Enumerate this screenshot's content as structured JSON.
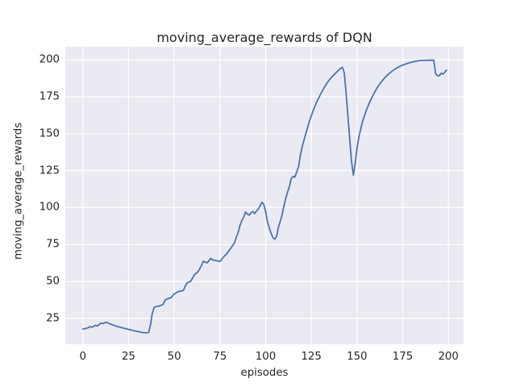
{
  "chart_data": {
    "type": "line",
    "title": "moving_average_rewards of DQN",
    "xlabel": "episodes",
    "ylabel": "moving_average_rewards",
    "x_ticks": [
      0,
      25,
      50,
      75,
      100,
      125,
      150,
      175,
      200
    ],
    "y_ticks": [
      25,
      50,
      75,
      100,
      125,
      150,
      175,
      200
    ],
    "xlim": [
      -9.6,
      208.3
    ],
    "ylim": [
      7.5,
      208.8
    ],
    "grid": true,
    "legend": false,
    "colors": {
      "figure_bg": "#ffffff",
      "axes_bg": "#eaeaf2",
      "grid": "#ffffff",
      "line": "#4c72b0",
      "text": "#262626"
    },
    "series": [
      {
        "name": "moving_average_rewards",
        "points": [
          [
            0,
            17.8
          ],
          [
            1,
            18.1
          ],
          [
            2,
            18.3
          ],
          [
            3,
            18.8
          ],
          [
            4,
            19.4
          ],
          [
            5,
            19.0
          ],
          [
            6,
            19.7
          ],
          [
            7,
            20.3
          ],
          [
            8,
            19.9
          ],
          [
            9,
            21.0
          ],
          [
            10,
            21.9
          ],
          [
            11,
            21.5
          ],
          [
            12,
            22.1
          ],
          [
            13,
            22.3
          ],
          [
            14,
            21.8
          ],
          [
            15,
            21.2
          ],
          [
            17,
            20.3
          ],
          [
            19,
            19.5
          ],
          [
            21,
            18.8
          ],
          [
            23,
            18.2
          ],
          [
            25,
            17.6
          ],
          [
            27,
            17.0
          ],
          [
            29,
            16.4
          ],
          [
            31,
            15.9
          ],
          [
            33,
            15.4
          ],
          [
            35,
            15.2
          ],
          [
            36,
            15.6
          ],
          [
            37,
            20.5
          ],
          [
            38,
            28.5
          ],
          [
            39,
            32.5
          ],
          [
            40,
            33.0
          ],
          [
            42,
            33.4
          ],
          [
            44,
            34.6
          ],
          [
            45,
            37.4
          ],
          [
            46,
            38.2
          ],
          [
            48,
            38.8
          ],
          [
            50,
            41.5
          ],
          [
            52,
            43.0
          ],
          [
            54,
            43.6
          ],
          [
            55,
            44.0
          ],
          [
            56,
            46.8
          ],
          [
            57,
            49.0
          ],
          [
            59,
            50.1
          ],
          [
            60,
            52.2
          ],
          [
            61,
            54.6
          ],
          [
            63,
            56.6
          ],
          [
            65,
            61.0
          ],
          [
            66,
            63.8
          ],
          [
            67,
            63.1
          ],
          [
            68,
            62.6
          ],
          [
            70,
            65.6
          ],
          [
            71,
            64.6
          ],
          [
            73,
            64.1
          ],
          [
            75,
            63.6
          ],
          [
            77,
            66.5
          ],
          [
            79,
            69.2
          ],
          [
            81,
            72.6
          ],
          [
            83,
            76.2
          ],
          [
            84,
            80.0
          ],
          [
            85,
            83.2
          ],
          [
            86,
            88.0
          ],
          [
            87,
            91.2
          ],
          [
            88,
            93.6
          ],
          [
            89,
            97.0
          ],
          [
            90,
            95.6
          ],
          [
            91,
            94.9
          ],
          [
            92,
            96.5
          ],
          [
            93,
            97.3
          ],
          [
            94,
            95.9
          ],
          [
            95,
            97.6
          ],
          [
            96,
            99.1
          ],
          [
            97,
            101.2
          ],
          [
            98,
            103.6
          ],
          [
            99,
            102.1
          ],
          [
            100,
            97.1
          ],
          [
            101,
            90.6
          ],
          [
            102,
            86.1
          ],
          [
            103,
            82.6
          ],
          [
            104,
            79.6
          ],
          [
            105,
            78.6
          ],
          [
            106,
            80.6
          ],
          [
            107,
            86.6
          ],
          [
            108,
            90.6
          ],
          [
            109,
            95.1
          ],
          [
            110,
            101.1
          ],
          [
            111,
            106.1
          ],
          [
            112,
            110.6
          ],
          [
            113,
            114.1
          ],
          [
            114,
            119.6
          ],
          [
            115,
            121.1
          ],
          [
            116,
            120.6
          ],
          [
            117,
            124.1
          ],
          [
            118,
            127.6
          ],
          [
            119,
            135.1
          ],
          [
            120,
            141.1
          ],
          [
            122,
            150.1
          ],
          [
            124,
            158.6
          ],
          [
            126,
            165.6
          ],
          [
            128,
            171.6
          ],
          [
            130,
            176.6
          ],
          [
            132,
            181.1
          ],
          [
            134,
            185.1
          ],
          [
            136,
            188.1
          ],
          [
            138,
            190.6
          ],
          [
            140,
            193.1
          ],
          [
            141,
            194.1
          ],
          [
            142,
            194.9
          ],
          [
            143,
            191.1
          ],
          [
            144,
            178.1
          ],
          [
            145,
            162.1
          ],
          [
            146,
            146.1
          ],
          [
            147,
            131.1
          ],
          [
            148,
            122.0
          ],
          [
            149,
            130.1
          ],
          [
            150,
            140.1
          ],
          [
            151,
            147.6
          ],
          [
            152,
            153.1
          ],
          [
            153,
            158.1
          ],
          [
            155,
            165.6
          ],
          [
            157,
            171.6
          ],
          [
            159,
            176.6
          ],
          [
            161,
            181.1
          ],
          [
            163,
            184.6
          ],
          [
            165,
            187.6
          ],
          [
            167,
            190.1
          ],
          [
            169,
            192.1
          ],
          [
            171,
            193.9
          ],
          [
            173,
            195.3
          ],
          [
            175,
            196.4
          ],
          [
            177,
            197.3
          ],
          [
            179,
            198.1
          ],
          [
            181,
            198.7
          ],
          [
            183,
            199.2
          ],
          [
            185,
            199.5
          ],
          [
            187,
            199.6
          ],
          [
            189,
            199.7
          ],
          [
            192,
            199.7
          ],
          [
            193,
            190.5
          ],
          [
            194,
            189.3
          ],
          [
            195,
            189.1
          ],
          [
            196,
            190.9
          ],
          [
            197,
            190.3
          ],
          [
            198,
            191.6
          ],
          [
            199,
            193.1
          ]
        ]
      }
    ]
  }
}
